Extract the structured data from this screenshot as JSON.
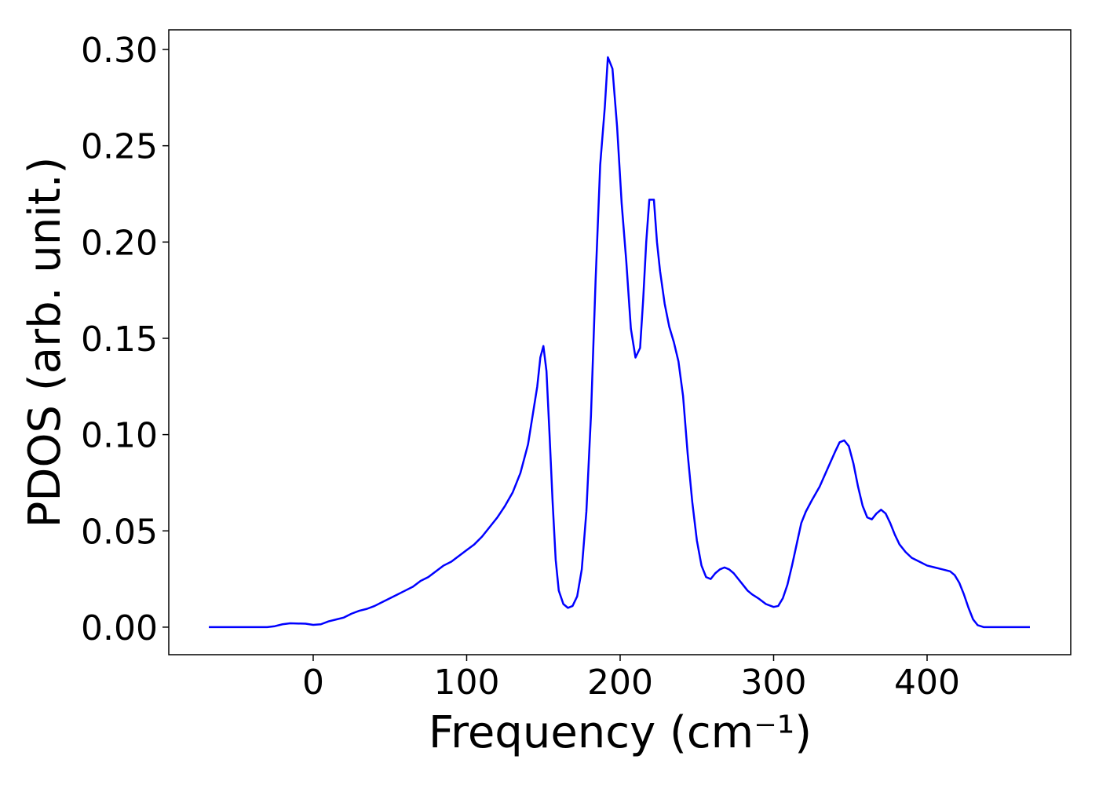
{
  "chart_data": {
    "type": "line",
    "x_label": "Frequency (cm⁻¹)",
    "y_label": "PDOS (arb. unit.)",
    "xlim": [
      -94.1,
      493.6
    ],
    "ylim": [
      -0.0143,
      0.3102
    ],
    "xticks": [
      0,
      100,
      200,
      300,
      400
    ],
    "yticks": [
      {
        "value": 0,
        "label": "0.00"
      },
      {
        "value": 0.05,
        "label": "0.05"
      },
      {
        "value": 0.1,
        "label": "0.10"
      },
      {
        "value": 0.15,
        "label": "0.15"
      },
      {
        "value": 0.2,
        "label": "0.20"
      },
      {
        "value": 0.25,
        "label": "0.25"
      },
      {
        "value": 0.3,
        "label": "0.30"
      }
    ],
    "grid": false,
    "series": [
      {
        "color": "#0000ff",
        "x": [
          -68,
          -30,
          -25,
          -20,
          -15,
          -5,
          0,
          5,
          10,
          15,
          20,
          25,
          30,
          35,
          40,
          45,
          50,
          55,
          60,
          65,
          70,
          75,
          80,
          85,
          90,
          95,
          100,
          105,
          110,
          115,
          120,
          125,
          130,
          135,
          140,
          143,
          146,
          148,
          150,
          152,
          154,
          156,
          158,
          160,
          163,
          166,
          169,
          172,
          175,
          178,
          181,
          184,
          187,
          190,
          192,
          195,
          198,
          201,
          204,
          207,
          210,
          213,
          215,
          217,
          219,
          222,
          224,
          226,
          229,
          232,
          235,
          238,
          241,
          244,
          247,
          250,
          253,
          256,
          259,
          262,
          265,
          268,
          271,
          274,
          277,
          280,
          283,
          286,
          290,
          295,
          300,
          303,
          306,
          309,
          312,
          315,
          318,
          321,
          325,
          330,
          335,
          340,
          343,
          346,
          349,
          352,
          355,
          358,
          361,
          364,
          367,
          370,
          373,
          376,
          379,
          382,
          386,
          390,
          395,
          400,
          405,
          410,
          415,
          418,
          421,
          424,
          427,
          430,
          433,
          437,
          467
        ],
        "values": [
          0,
          0,
          0.0005,
          0.0015,
          0.002,
          0.0018,
          0.0012,
          0.0015,
          0.003,
          0.004,
          0.005,
          0.007,
          0.0085,
          0.0095,
          0.011,
          0.013,
          0.015,
          0.017,
          0.019,
          0.021,
          0.024,
          0.026,
          0.029,
          0.032,
          0.034,
          0.037,
          0.04,
          0.043,
          0.047,
          0.052,
          0.057,
          0.063,
          0.07,
          0.08,
          0.095,
          0.11,
          0.125,
          0.14,
          0.146,
          0.133,
          0.1,
          0.065,
          0.035,
          0.019,
          0.012,
          0.01,
          0.011,
          0.016,
          0.03,
          0.06,
          0.11,
          0.18,
          0.24,
          0.27,
          0.296,
          0.29,
          0.26,
          0.22,
          0.19,
          0.155,
          0.14,
          0.145,
          0.17,
          0.2,
          0.222,
          0.222,
          0.2,
          0.185,
          0.168,
          0.156,
          0.148,
          0.138,
          0.12,
          0.09,
          0.065,
          0.045,
          0.032,
          0.026,
          0.025,
          0.028,
          0.03,
          0.031,
          0.03,
          0.028,
          0.025,
          0.022,
          0.019,
          0.017,
          0.015,
          0.012,
          0.0105,
          0.011,
          0.015,
          0.022,
          0.032,
          0.043,
          0.054,
          0.06,
          0.066,
          0.073,
          0.082,
          0.091,
          0.096,
          0.097,
          0.094,
          0.085,
          0.073,
          0.063,
          0.057,
          0.056,
          0.059,
          0.061,
          0.059,
          0.054,
          0.048,
          0.043,
          0.039,
          0.036,
          0.034,
          0.032,
          0.031,
          0.03,
          0.029,
          0.027,
          0.023,
          0.017,
          0.01,
          0.004,
          0.001,
          0,
          0
        ]
      }
    ]
  }
}
